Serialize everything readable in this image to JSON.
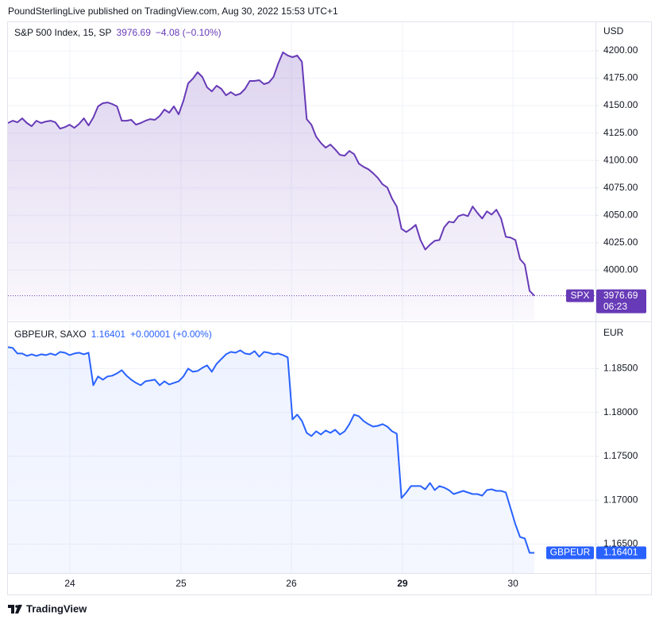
{
  "header": "PoundSterlingLive published on TradingView.com, Aug 30, 2022 15:53 UTC+1",
  "footer": "TradingView",
  "chart_data": [
    {
      "type": "line",
      "title": "S&P 500 Index, 15, SP",
      "change": "−4.08 (−0.10%)",
      "currency": "USD",
      "badge": "SPX",
      "countdown": "06:23",
      "color": "#673ab7",
      "xlim": [
        0,
        123.9
      ],
      "ylim": [
        3954,
        4226
      ],
      "grid": true,
      "yticks": [
        {
          "value": 4000,
          "label": "4000.00"
        },
        {
          "value": 4025,
          "label": "4025.00"
        },
        {
          "value": 4050,
          "label": "4050.00"
        },
        {
          "value": 4075,
          "label": "4075.00"
        },
        {
          "value": 4100,
          "label": "4100.00"
        },
        {
          "value": 4125,
          "label": "4125.00"
        },
        {
          "value": 4150,
          "label": "4150.00"
        },
        {
          "value": 4175,
          "label": "4175.00"
        },
        {
          "value": 4200,
          "label": "4200.00"
        }
      ],
      "values": [
        4134.1,
        4136.2,
        4134.8,
        4138.4,
        4134.1,
        4131.2,
        4136.2,
        4134.1,
        4135.5,
        4136.2,
        4134.8,
        4129.0,
        4130.4,
        4132.6,
        4129.7,
        4133.3,
        4138.4,
        4131.9,
        4139.1,
        4149.3,
        4152.2,
        4152.9,
        4151.4,
        4149.3,
        4136.2,
        4136.2,
        4137.0,
        4132.6,
        4134.1,
        4136.2,
        4137.7,
        4137.0,
        4140.6,
        4146.4,
        4143.5,
        4149.3,
        4142.0,
        4154.3,
        4170.3,
        4174.6,
        4180.4,
        4176.1,
        4166.7,
        4163.0,
        4168.1,
        4165.2,
        4159.4,
        4162.3,
        4159.4,
        4160.9,
        4165.2,
        4172.5,
        4172.5,
        4173.2,
        4169.6,
        4171.0,
        4176.1,
        4188.4,
        4198.6,
        4195.7,
        4194.2,
        4195.7,
        4189.9,
        4137.7,
        4132.6,
        4121.7,
        4115.9,
        4111.6,
        4114.5,
        4110.1,
        4105.1,
        4104.3,
        4108.7,
        4105.8,
        4097.1,
        4094.2,
        4092.0,
        4088.4,
        4084.1,
        4078.3,
        4075.4,
        4065.2,
        4058.0,
        4037.7,
        4034.8,
        4037.7,
        4041.3,
        4027.5,
        4018.8,
        4023.2,
        4026.8,
        4027.5,
        4039.1,
        4044.2,
        4043.5,
        4049.3,
        4050.7,
        4049.3,
        4058.0,
        4052.2,
        4047.1,
        4053.6,
        4050.7,
        4055.1,
        4047.1,
        4030.4,
        4029.7,
        4027.5,
        4010.1,
        4005.1,
        3981.2,
        3976.69
      ]
    },
    {
      "type": "line",
      "title": "GBPEUR, SAXO",
      "change": "+0.00001 (+0.00%)",
      "currency": "EUR",
      "badge": "GBPEUR",
      "color": "#2962ff",
      "xlim": [
        0,
        123.9
      ],
      "ylim": [
        1.1617,
        1.1901
      ],
      "grid": true,
      "yticks": [
        {
          "value": 1.165,
          "label": "1.16500"
        },
        {
          "value": 1.17,
          "label": "1.17000"
        },
        {
          "value": 1.175,
          "label": "1.17500"
        },
        {
          "value": 1.18,
          "label": "1.18000"
        },
        {
          "value": 1.185,
          "label": "1.18500"
        }
      ],
      "xticks": [
        {
          "value": 13.06,
          "label": "24"
        },
        {
          "value": 36.5,
          "label": "25"
        },
        {
          "value": 59.77,
          "label": "26"
        },
        {
          "value": 83.2,
          "label": "29",
          "bold": true
        },
        {
          "value": 106.5,
          "label": "30"
        }
      ],
      "values": [
        1.18744,
        1.18735,
        1.18672,
        1.18672,
        1.18645,
        1.18663,
        1.18645,
        1.18663,
        1.18654,
        1.18672,
        1.18654,
        1.1869,
        1.18681,
        1.18654,
        1.18672,
        1.18681,
        1.18663,
        1.18681,
        1.1831,
        1.1841,
        1.18373,
        1.1841,
        1.18419,
        1.18446,
        1.18482,
        1.18419,
        1.18373,
        1.18337,
        1.1831,
        1.18355,
        1.18364,
        1.18373,
        1.1831,
        1.18355,
        1.18319,
        1.18337,
        1.18355,
        1.1841,
        1.185,
        1.18464,
        1.18473,
        1.18509,
        1.18536,
        1.18464,
        1.18554,
        1.18609,
        1.18663,
        1.1869,
        1.18681,
        1.18708,
        1.18672,
        1.18663,
        1.18699,
        1.18636,
        1.1869,
        1.18681,
        1.18663,
        1.18672,
        1.18654,
        1.18627,
        1.17921,
        1.17975,
        1.17903,
        1.17767,
        1.17731,
        1.17785,
        1.17749,
        1.17794,
        1.17767,
        1.17803,
        1.17749,
        1.17785,
        1.17867,
        1.17975,
        1.17957,
        1.17903,
        1.17867,
        1.17839,
        1.17848,
        1.17867,
        1.17839,
        1.17785,
        1.17758,
        1.17025,
        1.17088,
        1.17161,
        1.17161,
        1.17161,
        1.17124,
        1.17197,
        1.17115,
        1.17161,
        1.17143,
        1.17115,
        1.1707,
        1.17088,
        1.17106,
        1.17088,
        1.1707,
        1.1707,
        1.17052,
        1.17115,
        1.17124,
        1.17106,
        1.17106,
        1.17088,
        1.16907,
        1.16726,
        1.16581,
        1.16563,
        1.16401,
        1.16401
      ]
    }
  ]
}
